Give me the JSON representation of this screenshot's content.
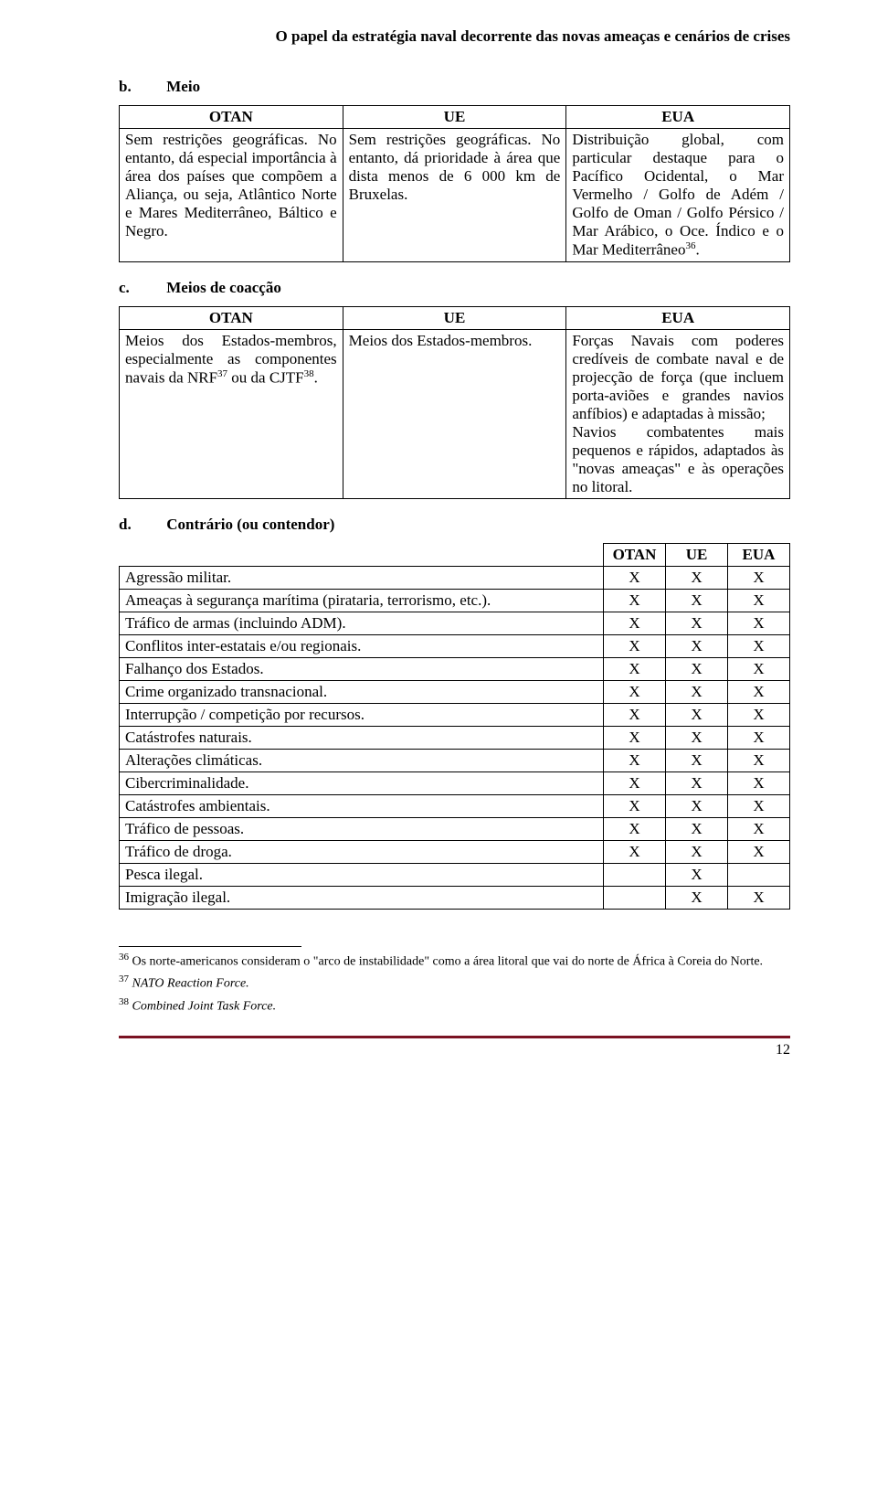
{
  "header_title": "O papel da estratégia naval decorrente das novas ameaças e cenários de crises",
  "sections": {
    "b": {
      "letter": "b.",
      "title": "Meio"
    },
    "c": {
      "letter": "c.",
      "title": "Meios de coacção"
    },
    "d": {
      "letter": "d.",
      "title": "Contrário (ou contendor)"
    }
  },
  "table_b": {
    "headers": [
      "OTAN",
      "UE",
      "EUA"
    ],
    "cells": [
      "Sem restrições geográficas. No entanto, dá especial importância à área dos países que compõem a Aliança, ou seja, Atlântico Norte e Mares Mediterrâneo, Báltico e Negro.",
      "Sem restrições geográficas. No entanto, dá prioridade à área que dista menos de 6 000 km de Bruxelas.",
      "Distribuição global, com particular destaque para o Pacífico Ocidental, o Mar Vermelho / Golfo de Adém / Golfo de Oman / Golfo Pérsico / Mar Arábico, o Oce. Índico e o Mar Mediterrâneo"
    ],
    "ref36": "36",
    "cell3_suffix": "."
  },
  "table_c": {
    "headers": [
      "OTAN",
      "UE",
      "EUA"
    ],
    "cell1_pre": "Meios dos Estados-membros, especialmente as componentes navais da NRF",
    "ref37": "37",
    "cell1_mid": " ou da CJTF",
    "ref38": "38",
    "cell1_suf": ".",
    "cell2": "Meios dos Estados-membros.",
    "cell3": "Forças Navais com poderes credíveis de combate naval e de projecção de força (que incluem porta-aviões e grandes navios anfíbios) e adaptadas à missão;\nNavios combatentes mais pequenos e rápidos, adaptados às \"novas ameaças\" e às operações no litoral."
  },
  "table_d": {
    "headers": [
      "OTAN",
      "UE",
      "EUA"
    ],
    "rows": [
      {
        "label": "Agressão militar.",
        "marks": [
          "X",
          "X",
          "X"
        ]
      },
      {
        "label": "Ameaças à segurança marítima (pirataria, terrorismo, etc.).",
        "marks": [
          "X",
          "X",
          "X"
        ]
      },
      {
        "label": "Tráfico de armas (incluindo ADM).",
        "marks": [
          "X",
          "X",
          "X"
        ]
      },
      {
        "label": "Conflitos inter-estatais e/ou regionais.",
        "marks": [
          "X",
          "X",
          "X"
        ]
      },
      {
        "label": "Falhanço dos Estados.",
        "marks": [
          "X",
          "X",
          "X"
        ]
      },
      {
        "label": "Crime organizado transnacional.",
        "marks": [
          "X",
          "X",
          "X"
        ]
      },
      {
        "label": "Interrupção / competição por recursos.",
        "marks": [
          "X",
          "X",
          "X"
        ]
      },
      {
        "label": "Catástrofes naturais.",
        "marks": [
          "X",
          "X",
          "X"
        ]
      },
      {
        "label": "Alterações climáticas.",
        "marks": [
          "X",
          "X",
          "X"
        ]
      },
      {
        "label": "Cibercriminalidade.",
        "marks": [
          "X",
          "X",
          "X"
        ]
      },
      {
        "label": "Catástrofes ambientais.",
        "marks": [
          "X",
          "X",
          "X"
        ]
      },
      {
        "label": "Tráfico de pessoas.",
        "marks": [
          "X",
          "X",
          "X"
        ]
      },
      {
        "label": "Tráfico de droga.",
        "marks": [
          "X",
          "X",
          "X"
        ]
      },
      {
        "label": "Pesca ilegal.",
        "marks": [
          "",
          "X",
          ""
        ]
      },
      {
        "label": "Imigração ilegal.",
        "marks": [
          "",
          "X",
          "X"
        ]
      }
    ]
  },
  "footnotes": {
    "f36": {
      "num": "36",
      "text": " Os norte-americanos consideram o \"arco de instabilidade\" como a área litoral que vai do norte de África à Coreia do Norte."
    },
    "f37": {
      "num": "37",
      "text_italic": " NATO Reaction Force."
    },
    "f38": {
      "num": "38",
      "text_italic": " Combined Joint Task Force."
    }
  },
  "page_number": "12",
  "colors": {
    "rule": "#7a1222"
  }
}
